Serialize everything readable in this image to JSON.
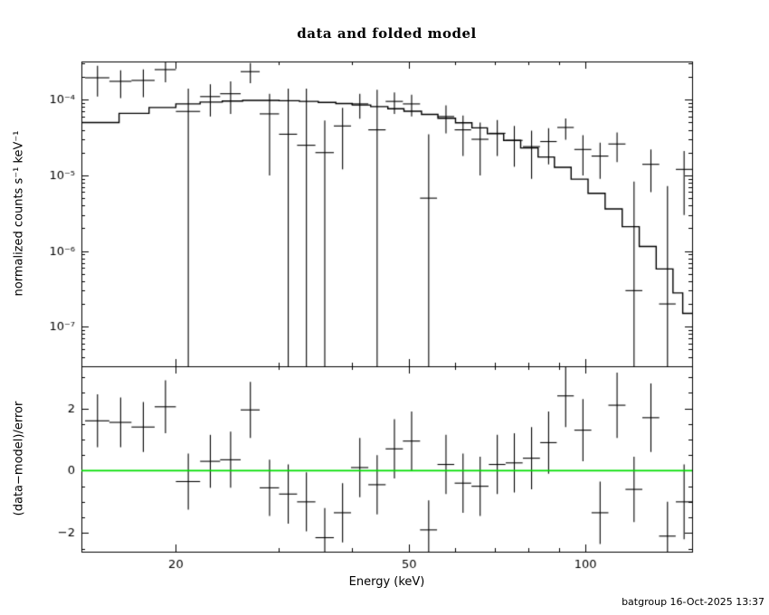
{
  "header": {
    "title": "data and folded model"
  },
  "footer": {
    "timestamp": "batgroup 16-Oct-2025 13:37"
  },
  "chart_data": {
    "type": "scatter",
    "title": "data and folded model",
    "xlabel": "Energy (keV)",
    "x_scale": "log",
    "x_range": [
      13.8,
      152
    ],
    "x_major_ticks": [
      20,
      50,
      100
    ],
    "x_major_labels": [
      "20",
      "50",
      "100"
    ],
    "x_minor_ticks": [
      30,
      40,
      60,
      70,
      80,
      90
    ],
    "grid": false,
    "legend": "none",
    "colors": {
      "data": "#000000",
      "model": "#000000",
      "zero_line": "#00dd00",
      "background": "#ffffff"
    },
    "panels": {
      "top": {
        "ylabel": "normalized counts s⁻¹ keV⁻¹",
        "y_scale": "log",
        "y_range": [
          3e-08,
          0.00032
        ],
        "y_major_ticks": [
          0.0001,
          1e-05,
          1e-06,
          1e-07
        ],
        "y_major_labels": [
          "10⁻⁴",
          "10⁻⁵",
          "10⁻⁶",
          "10⁻⁷"
        ],
        "model_step": {
          "edges": [
            13.8,
            16,
            18,
            20,
            22,
            24,
            26,
            28,
            30,
            32.5,
            35,
            37.5,
            40,
            43,
            46,
            49,
            52.5,
            56,
            60,
            64,
            68,
            72.5,
            77.5,
            83,
            88.5,
            94.5,
            101,
            108,
            115.5,
            123.5,
            132,
            141,
            146.5,
            152
          ],
          "values": [
            5e-05,
            6.6e-05,
            7.9e-05,
            8.8e-05,
            9.3e-05,
            9.6e-05,
            9.8e-05,
            9.8e-05,
            9.7e-05,
            9.5e-05,
            9.2e-05,
            8.9e-05,
            8.5e-05,
            8.1e-05,
            7.6e-05,
            7.05e-05,
            6.4e-05,
            5.7e-05,
            4.95e-05,
            4.25e-05,
            3.55e-05,
            2.9e-05,
            2.3e-05,
            1.75e-05,
            1.28e-05,
            8.9e-06,
            5.8e-06,
            3.6e-06,
            2.1e-06,
            1.15e-06,
            5.8e-07,
            2.8e-07,
            1.5e-07
          ]
        },
        "points_format": [
          "energy_keV",
          "energy_halfwidth_keV",
          "rate",
          "rate_error"
        ],
        "points": [
          [
            14.7,
            0.7,
            0.000195,
            8.5e-05
          ],
          [
            16.1,
            0.7,
            0.000175,
            7e-05
          ],
          [
            17.6,
            0.8,
            0.00018,
            7.2e-05
          ],
          [
            19.2,
            0.8,
            0.00025,
            8e-05
          ],
          [
            21.0,
            1.0,
            7e-05,
            7e-05
          ],
          [
            22.9,
            0.9,
            0.00011,
            5e-05
          ],
          [
            24.8,
            1.0,
            0.00012,
            5.5e-05
          ],
          [
            26.8,
            1.0,
            0.000235,
            7e-05
          ],
          [
            28.9,
            1.1,
            6.5e-05,
            5.5e-05
          ],
          [
            31.1,
            1.1,
            3.5e-05,
            0.000105
          ],
          [
            33.4,
            1.2,
            2.5e-05,
            0.000115
          ],
          [
            35.9,
            1.3,
            2e-05,
            3.3e-05
          ],
          [
            38.5,
            1.3,
            4.5e-05,
            3.3e-05
          ],
          [
            41.2,
            1.4,
            8.8e-05,
            3.2e-05
          ],
          [
            44.1,
            1.5,
            4e-05,
            9.5e-05
          ],
          [
            47.2,
            1.6,
            9.5e-05,
            3e-05
          ],
          [
            50.5,
            1.7,
            8.8e-05,
            2.8e-05
          ],
          [
            54.0,
            1.8,
            5e-06,
            3e-05
          ],
          [
            57.8,
            1.9,
            6e-05,
            2.4e-05
          ],
          [
            61.8,
            2.0,
            4e-05,
            2.2e-05
          ],
          [
            66.1,
            2.2,
            3e-05,
            2e-05
          ],
          [
            70.7,
            2.3,
            3.6e-05,
            1.8e-05
          ],
          [
            75.6,
            2.5,
            2.9e-05,
            1.6e-05
          ],
          [
            80.9,
            2.7,
            2.4e-05,
            1.5e-05
          ],
          [
            86.5,
            2.8,
            2.8e-05,
            1.4e-05
          ],
          [
            92.5,
            3.0,
            4.3e-05,
            1.35e-05
          ],
          [
            99.0,
            3.3,
            2.2e-05,
            1.2e-05
          ],
          [
            105.9,
            3.5,
            1.8e-05,
            9e-06
          ],
          [
            113.2,
            3.8,
            2.6e-05,
            1.1e-05
          ],
          [
            121.0,
            4.0,
            3e-07,
            8e-06
          ],
          [
            129.3,
            4.3,
            1.4e-05,
            8e-06
          ],
          [
            138.0,
            4.5,
            2e-07,
            7e-06
          ],
          [
            147.3,
            4.7,
            1.2e-05,
            9e-06
          ]
        ]
      },
      "bottom": {
        "ylabel": "(data−model)/error",
        "y_scale": "linear",
        "y_range": [
          -2.6,
          3.35
        ],
        "y_major_ticks": [
          -2,
          0,
          2
        ],
        "y_major_labels": [
          "−2",
          "0",
          "2"
        ],
        "zero_line": 0,
        "points_format": [
          "energy_keV",
          "energy_halfwidth_keV",
          "residual_sigma",
          "residual_error"
        ],
        "points": [
          [
            14.7,
            0.7,
            1.6,
            0.85
          ],
          [
            16.1,
            0.7,
            1.55,
            0.8
          ],
          [
            17.6,
            0.8,
            1.4,
            0.8
          ],
          [
            19.2,
            0.8,
            2.05,
            0.85
          ],
          [
            21.0,
            1.0,
            -0.35,
            0.9
          ],
          [
            22.9,
            0.9,
            0.3,
            0.85
          ],
          [
            24.8,
            1.0,
            0.35,
            0.9
          ],
          [
            26.8,
            1.0,
            1.95,
            0.9
          ],
          [
            28.9,
            1.1,
            -0.55,
            0.9
          ],
          [
            31.1,
            1.1,
            -0.75,
            0.95
          ],
          [
            33.4,
            1.2,
            -1.0,
            0.95
          ],
          [
            35.9,
            1.3,
            -2.15,
            0.95
          ],
          [
            38.5,
            1.3,
            -1.35,
            0.95
          ],
          [
            41.2,
            1.4,
            0.1,
            0.95
          ],
          [
            44.1,
            1.5,
            -0.45,
            0.95
          ],
          [
            47.2,
            1.6,
            0.7,
            0.95
          ],
          [
            50.5,
            1.7,
            0.95,
            0.95
          ],
          [
            54.0,
            1.8,
            -1.9,
            0.95
          ],
          [
            57.8,
            1.9,
            0.2,
            0.95
          ],
          [
            61.8,
            2.0,
            -0.4,
            0.95
          ],
          [
            66.1,
            2.2,
            -0.5,
            0.95
          ],
          [
            70.7,
            2.3,
            0.2,
            0.95
          ],
          [
            75.6,
            2.5,
            0.25,
            0.95
          ],
          [
            80.9,
            2.7,
            0.4,
            1.0
          ],
          [
            86.5,
            2.8,
            0.9,
            1.0
          ],
          [
            92.5,
            3.0,
            2.4,
            1.0
          ],
          [
            99.0,
            3.3,
            1.3,
            1.0
          ],
          [
            105.9,
            3.5,
            -1.35,
            1.0
          ],
          [
            113.2,
            3.8,
            2.1,
            1.05
          ],
          [
            121.0,
            4.0,
            -0.6,
            1.05
          ],
          [
            129.3,
            4.3,
            1.7,
            1.1
          ],
          [
            138.0,
            4.5,
            -2.1,
            1.1
          ],
          [
            147.3,
            4.7,
            -1.0,
            1.2
          ]
        ]
      }
    }
  }
}
